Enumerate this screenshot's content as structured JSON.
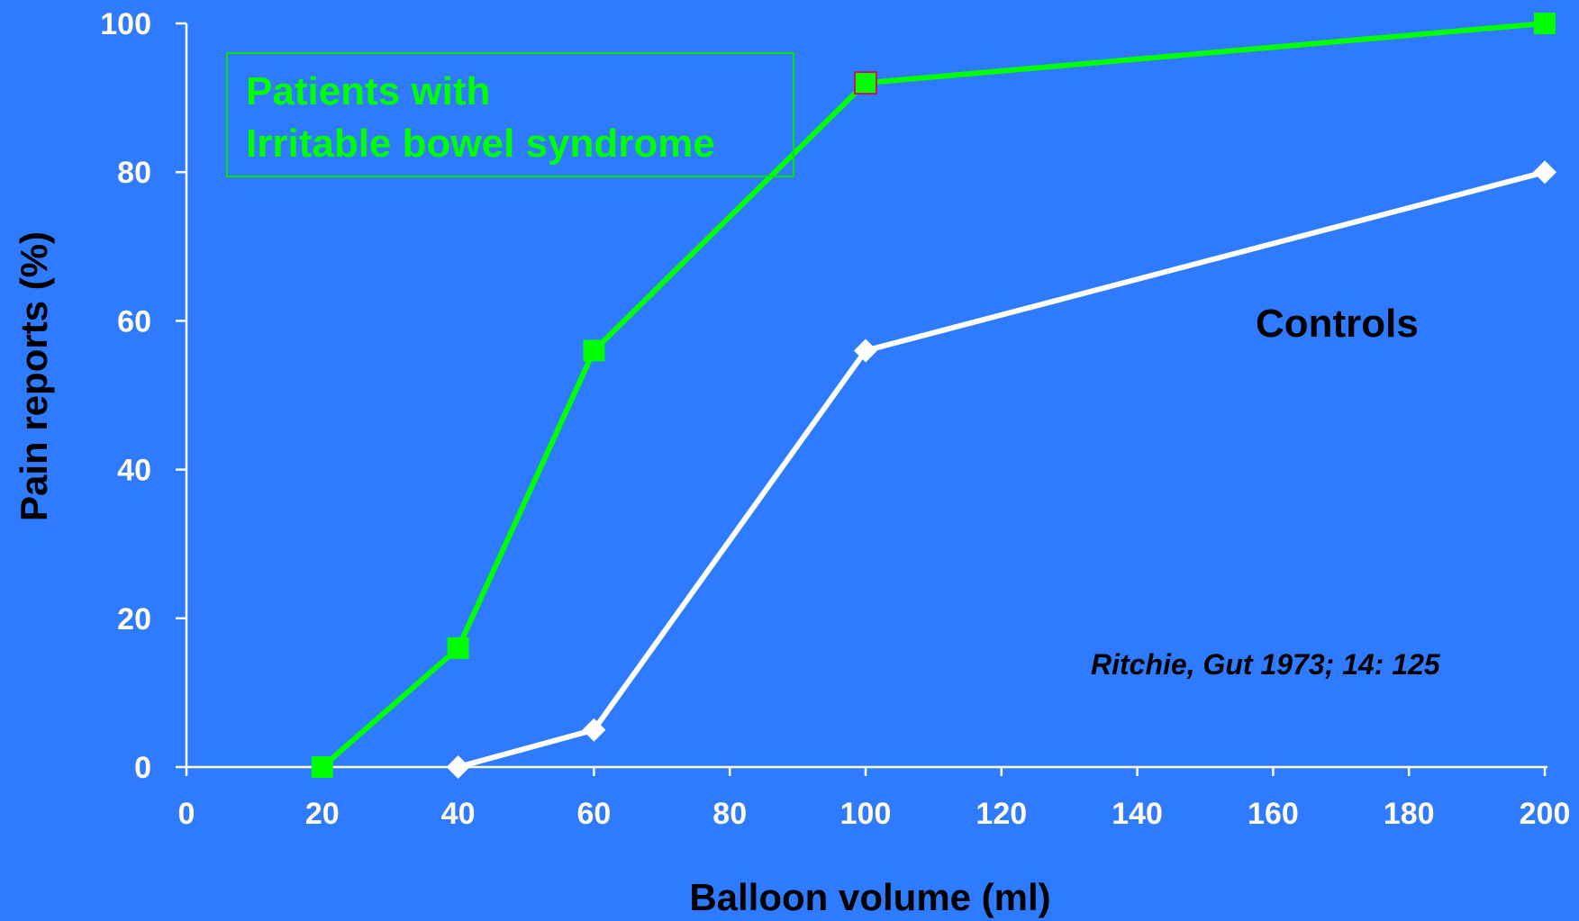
{
  "colors": {
    "background": "#2e7bff",
    "axis": "#ffffff",
    "tick_label": "#fffbe6",
    "ibs": "#00ff00",
    "controls": "#ffffff",
    "highlight_marker_border": "#c0185e",
    "controls_text": "#000000",
    "citation": "#000000"
  },
  "chart_data": {
    "type": "line",
    "xlabel": "Balloon volume (ml)",
    "ylabel": "Pain reports (%)",
    "x_ticks": [
      "0",
      "20",
      "40",
      "60",
      "80",
      "100",
      "120",
      "140",
      "160",
      "180",
      "200"
    ],
    "y_ticks": [
      "0",
      "20",
      "40",
      "60",
      "80",
      "100"
    ],
    "ylim": [
      0,
      100
    ],
    "x_scale": "categorical (evenly spaced ticks)",
    "legend_box": "top-left",
    "grid": false,
    "series": [
      {
        "name": "Patients with Irritable bowel syndrome",
        "label_lines": [
          "Patients with",
          "Irritable bowel syndrome"
        ],
        "marker": "square",
        "color": "#00ff00",
        "x": [
          "20",
          "40",
          "60",
          "100",
          "200"
        ],
        "values": [
          0,
          16,
          56,
          92,
          100
        ]
      },
      {
        "name": "Controls",
        "marker": "diamond",
        "color": "#ffffff",
        "x": [
          "40",
          "60",
          "100",
          "200"
        ],
        "values": [
          0,
          5,
          56,
          80
        ]
      }
    ],
    "annotations": [
      "Ritchie, Gut 1973; 14: 125"
    ]
  }
}
